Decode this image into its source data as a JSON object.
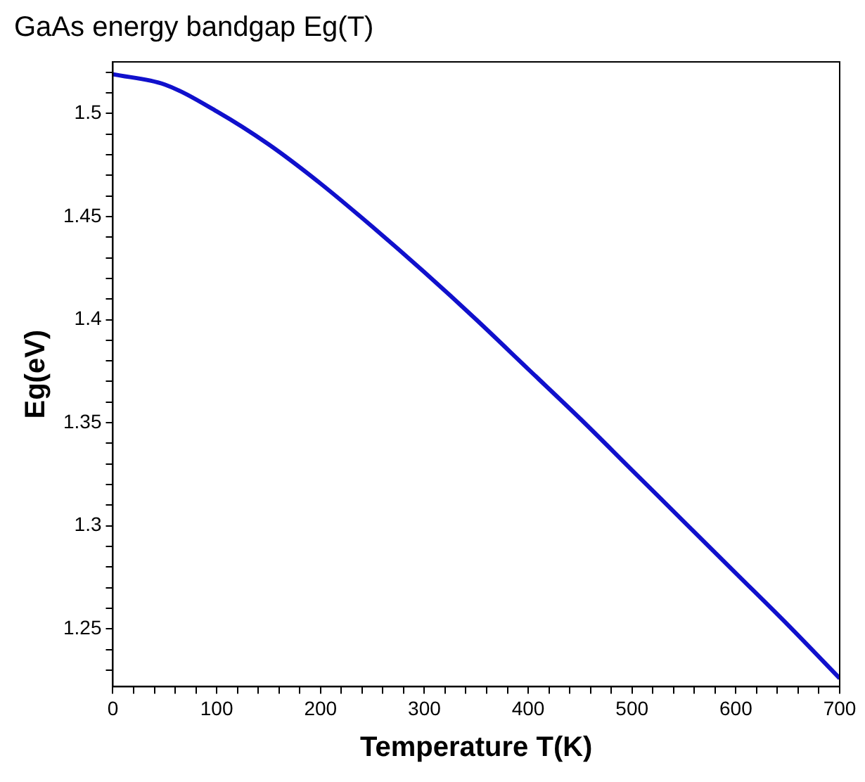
{
  "chart_data": {
    "type": "line",
    "title": "GaAs energy bandgap Eg(T)",
    "xlabel": "Temperature T(K)",
    "ylabel": "Eg(eV)",
    "x": [
      0,
      50,
      100,
      150,
      200,
      250,
      300,
      350,
      400,
      450,
      500,
      550,
      600,
      650,
      700
    ],
    "series": [
      {
        "color": "#1010cc",
        "values": [
          1.519,
          1.514,
          1.501,
          1.485,
          1.466,
          1.445,
          1.423,
          1.4,
          1.376,
          1.352,
          1.327,
          1.302,
          1.277,
          1.252,
          1.226
        ]
      }
    ],
    "xlim": [
      0,
      700
    ],
    "ylim": [
      1.222,
      1.525
    ],
    "xticks": [
      0,
      {
        "value": 20,
        "label": null
      },
      {
        "value": 40,
        "label": null
      },
      {
        "value": 60,
        "label": null
      },
      {
        "value": 80,
        "label": null
      },
      100,
      {
        "value": 120,
        "label": null
      },
      {
        "value": 140,
        "label": null
      },
      {
        "value": 160,
        "label": null
      },
      {
        "value": 180,
        "label": null
      },
      200,
      {
        "value": 220,
        "label": null
      },
      {
        "value": 240,
        "label": null
      },
      {
        "value": 260,
        "label": null
      },
      {
        "value": 280,
        "label": null
      },
      300,
      {
        "value": 320,
        "label": null
      },
      {
        "value": 340,
        "label": null
      },
      {
        "value": 360,
        "label": null
      },
      {
        "value": 380,
        "label": null
      },
      400,
      {
        "value": 420,
        "label": null
      },
      {
        "value": 440,
        "label": null
      },
      {
        "value": 460,
        "label": null
      },
      {
        "value": 480,
        "label": null
      },
      500,
      {
        "value": 520,
        "label": null
      },
      {
        "value": 540,
        "label": null
      },
      {
        "value": 560,
        "label": null
      },
      {
        "value": 580,
        "label": null
      },
      600,
      {
        "value": 620,
        "label": null
      },
      {
        "value": 640,
        "label": null
      },
      {
        "value": 660,
        "label": null
      },
      {
        "value": 680,
        "label": null
      },
      700
    ],
    "yticks": [
      {
        "value": 1.23,
        "label": null
      },
      {
        "value": 1.24,
        "label": null
      },
      1.25,
      {
        "value": 1.26,
        "label": null
      },
      {
        "value": 1.27,
        "label": null
      },
      {
        "value": 1.28,
        "label": null
      },
      {
        "value": 1.29,
        "label": null
      },
      1.3,
      {
        "value": 1.31,
        "label": null
      },
      {
        "value": 1.32,
        "label": null
      },
      {
        "value": 1.33,
        "label": null
      },
      {
        "value": 1.34,
        "label": null
      },
      1.35,
      {
        "value": 1.36,
        "label": null
      },
      {
        "value": 1.37,
        "label": null
      },
      {
        "value": 1.38,
        "label": null
      },
      {
        "value": 1.39,
        "label": null
      },
      1.4,
      {
        "value": 1.41,
        "label": null
      },
      {
        "value": 1.42,
        "label": null
      },
      {
        "value": 1.43,
        "label": null
      },
      {
        "value": 1.44,
        "label": null
      },
      1.45,
      {
        "value": 1.46,
        "label": null
      },
      {
        "value": 1.47,
        "label": null
      },
      {
        "value": 1.48,
        "label": null
      },
      {
        "value": 1.49,
        "label": null
      },
      1.5,
      {
        "value": 1.51,
        "label": null
      },
      {
        "value": 1.52,
        "label": null
      }
    ],
    "grid": false,
    "legend": false,
    "marker": "none",
    "line_style": "solid"
  }
}
